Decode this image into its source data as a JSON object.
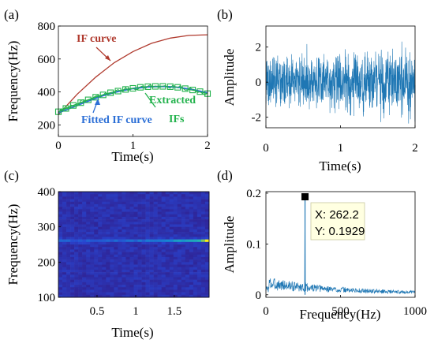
{
  "colors": {
    "if_curve": "#b03a2e",
    "extracted": "#22b24c",
    "fitted": "#2c6fd6",
    "signal": "#1f77b4",
    "spectrum": "#1f77b4",
    "tip_bg": "#ffffe1"
  },
  "chart_data": [
    {
      "panel": "(a)",
      "type": "line",
      "xlabel": "Time(s)",
      "ylabel": "Frequency(Hz)",
      "xlim": [
        0,
        2
      ],
      "ylim": [
        130,
        800
      ],
      "xticks": [
        "0",
        "1",
        "2"
      ],
      "yticks": [
        "200",
        "400",
        "600",
        "800"
      ],
      "series": [
        {
          "name": "IF curve",
          "x": [
            0,
            0.25,
            0.5,
            0.75,
            1.0,
            1.25,
            1.5,
            1.75,
            2.0
          ],
          "y": [
            262,
            385,
            490,
            578,
            645,
            695,
            727,
            743,
            747
          ]
        },
        {
          "name": "Extracted IFs",
          "x": [
            0,
            0.1,
            0.2,
            0.3,
            0.4,
            0.5,
            0.6,
            0.7,
            0.8,
            0.9,
            1.0,
            1.1,
            1.2,
            1.3,
            1.4,
            1.5,
            1.6,
            1.7,
            1.8,
            1.9,
            2.0
          ],
          "y": [
            280,
            300,
            318,
            335,
            352,
            368,
            382,
            395,
            405,
            415,
            422,
            428,
            432,
            434,
            434,
            432,
            428,
            420,
            412,
            402,
            390
          ]
        },
        {
          "name": "Fitted IF curve",
          "x": [
            0,
            0.2,
            0.4,
            0.6,
            0.8,
            1.0,
            1.2,
            1.4,
            1.6,
            1.8,
            2.0
          ],
          "y": [
            272,
            308,
            344,
            377,
            402,
            420,
            430,
            433,
            428,
            415,
            395
          ]
        }
      ],
      "annotations": [
        "IF curve",
        "Extracted",
        "IFs",
        "Fitted IF curve"
      ]
    },
    {
      "panel": "(b)",
      "type": "line",
      "xlabel": "Time(s)",
      "ylabel": "Amplitude",
      "xlim": [
        0,
        2
      ],
      "ylim": [
        -2.6,
        3.2
      ],
      "xticks": [
        "0",
        "1",
        "2"
      ],
      "yticks": [
        "-2",
        "0",
        "2"
      ],
      "series": [
        {
          "name": "",
          "description_range": [
            -2.5,
            3.1
          ]
        }
      ]
    },
    {
      "panel": "(c)",
      "type": "heatmap",
      "xlabel": "Time(s)",
      "ylabel": "Frequency(Hz)",
      "xlim": [
        0,
        1.95
      ],
      "ylim": [
        100,
        400
      ],
      "xticks": [
        "0.5",
        "1",
        "1.5"
      ],
      "yticks": [
        "100",
        "200",
        "300",
        "400"
      ],
      "ridge_frequency": 262
    },
    {
      "panel": "(d)",
      "type": "line",
      "xlabel": "Frequency(Hz)",
      "ylabel": "Amplitude",
      "xlim": [
        0,
        1000
      ],
      "ylim": [
        0,
        0.2
      ],
      "xticks": [
        "0",
        "500",
        "1000"
      ],
      "yticks": [
        "0",
        "0.1",
        "0.2"
      ],
      "peak": {
        "x": 262.2,
        "y": 0.1929
      },
      "datatip": {
        "x_line": "X: 262.2",
        "y_line": "Y: 0.1929"
      }
    }
  ]
}
